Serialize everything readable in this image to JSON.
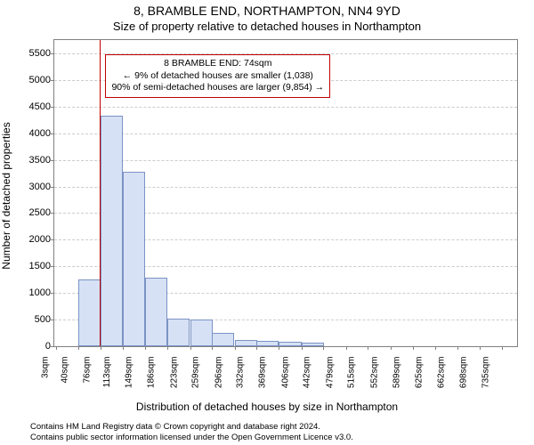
{
  "title_line1": "8, BRAMBLE END, NORTHAMPTON, NN4 9YD",
  "title_line2": "Size of property relative to detached houses in Northampton",
  "y_axis_label": "Number of detached properties",
  "x_axis_label": "Distribution of detached houses by size in Northampton",
  "footnote_line1": "Contains HM Land Registry data © Crown copyright and database right 2024.",
  "footnote_line2": "Contains public sector information licensed under the Open Government Licence v3.0.",
  "chart": {
    "type": "histogram",
    "background_color": "#ffffff",
    "border_color": "#808080",
    "grid_color": "#cccccc",
    "bar_fill": "#d6e1f5",
    "bar_border": "#7a92c4",
    "marker_line_color": "#c00000",
    "callout_border_color": "#c00000",
    "text_color": "#000000",
    "title_fontsize": 14,
    "subtitle_fontsize": 13,
    "axis_label_fontsize": 12,
    "tick_fontsize": 11,
    "xtick_fontsize": 10,
    "callout_fontsize": 10.5,
    "footnote_fontsize": 9.5,
    "y_min": 0,
    "y_max": 5750,
    "y_tick_step": 500,
    "y_ticks": [
      0,
      500,
      1000,
      1500,
      2000,
      2500,
      3000,
      3500,
      4000,
      4500,
      5000,
      5500
    ],
    "x_min": 0,
    "x_max": 760,
    "x_ticks": [
      3,
      40,
      76,
      113,
      149,
      186,
      223,
      259,
      296,
      332,
      369,
      406,
      442,
      479,
      515,
      552,
      589,
      625,
      662,
      698,
      735
    ],
    "x_tick_labels": [
      "3sqm",
      "40sqm",
      "76sqm",
      "113sqm",
      "149sqm",
      "186sqm",
      "223sqm",
      "259sqm",
      "296sqm",
      "332sqm",
      "369sqm",
      "406sqm",
      "442sqm",
      "479sqm",
      "515sqm",
      "552sqm",
      "589sqm",
      "625sqm",
      "662sqm",
      "698sqm",
      "735sqm"
    ],
    "bar_width_sqm": 36.6,
    "bars": [
      {
        "x_start": 3,
        "count": 0
      },
      {
        "x_start": 40,
        "count": 1260
      },
      {
        "x_start": 76,
        "count": 4330
      },
      {
        "x_start": 113,
        "count": 3280
      },
      {
        "x_start": 149,
        "count": 1280
      },
      {
        "x_start": 186,
        "count": 520
      },
      {
        "x_start": 223,
        "count": 510
      },
      {
        "x_start": 259,
        "count": 250
      },
      {
        "x_start": 296,
        "count": 120
      },
      {
        "x_start": 332,
        "count": 100
      },
      {
        "x_start": 369,
        "count": 90
      },
      {
        "x_start": 406,
        "count": 70
      },
      {
        "x_start": 442,
        "count": 0
      },
      {
        "x_start": 479,
        "count": 0
      },
      {
        "x_start": 515,
        "count": 0
      },
      {
        "x_start": 552,
        "count": 0
      },
      {
        "x_start": 589,
        "count": 0
      },
      {
        "x_start": 625,
        "count": 0
      },
      {
        "x_start": 662,
        "count": 0
      },
      {
        "x_start": 698,
        "count": 0
      }
    ],
    "marker_value_sqm": 74,
    "callout": {
      "line1": "8 BRAMBLE END: 74sqm",
      "line2": "← 9% of detached houses are smaller (1,038)",
      "line3": "90% of semi-detached houses are larger (9,854) →",
      "top_y_value": 5480,
      "left_x_value": 84
    }
  }
}
